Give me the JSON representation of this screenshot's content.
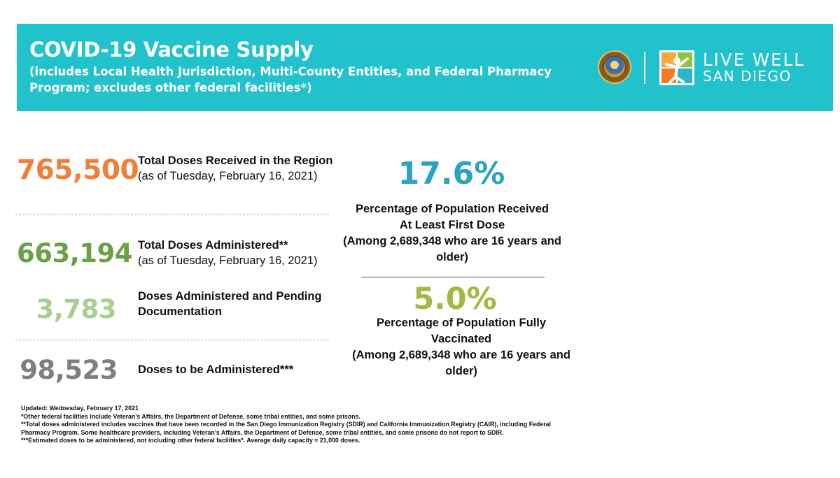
{
  "header": {
    "title": "COVID-19 Vaccine Supply",
    "subtitle": "(includes Local Health Jurisdiction, Multi-County Entities, and Federal Pharmacy Program; excludes other federal facilities*)",
    "logo_line1": "LIVE WELL",
    "logo_line2": "SAN DIEGO"
  },
  "stats": [
    {
      "value": "765,500",
      "label": "Total Doses Received in the Region",
      "sublabel": "(as of Tuesday, February 16, 2021)",
      "color": "#f07f3b"
    },
    {
      "value": "663,194",
      "label": "Total Doses Administered**",
      "sublabel": "(as of Tuesday, February 16, 2021)",
      "color": "#6aa046"
    },
    {
      "value": "3,783",
      "label_line1": "Doses Administered and Pending",
      "label_line2": "Documentation",
      "color": "#a9cf90"
    },
    {
      "value": "98,523",
      "label": "Doses to be Administered***",
      "color": "#7f7f7f"
    }
  ],
  "percentages": [
    {
      "value": "17.6%",
      "lines": [
        "Percentage of Population Received",
        "At Least First Dose",
        "(Among 2,689,348 who are 16 years and",
        "older)"
      ],
      "color": "#2aa2c2"
    },
    {
      "value": "5.0%",
      "lines": [
        "Percentage of Population Fully",
        "Vaccinated",
        "(Among 2,689,348 who are 16 years and",
        "older)"
      ],
      "color": "#a3b83f"
    }
  ],
  "footnotes": {
    "updated": "Updated: Wednesday, February 17, 2021",
    "note1": "*Other federal facilities include Veteran’s Affairs, the Department of Defense, some tribal entities, and some prisons.",
    "note2": "**Total doses administered includes vaccines that have been recorded in the San Diego Immunization Registry (SDIR) and California Immunization Registry (CAIR), including Federal Pharmacy Program. Some healthcare providers, including Veteran’s Affairs, the Department of Defense, some tribal entities, and some prisons do not report to SDIR.",
    "note3": "***Estimated doses to be administered, not including other federal facilities*. Average daily capacity = 21,000 doses."
  }
}
